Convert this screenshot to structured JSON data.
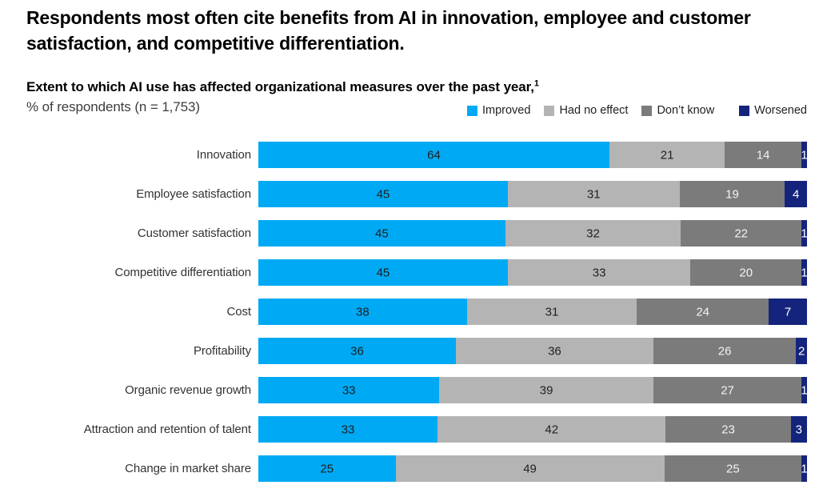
{
  "title": "Respondents most often cite benefits from AI in innovation, employee and customer satisfaction, and competitive differentiation.",
  "subtitle": {
    "text": "Extent to which AI use has affected organizational measures over the past year,",
    "footnote_marker": "1",
    "note": "% of respondents (n = 1,753)"
  },
  "legend": [
    {
      "label": "Improved",
      "color": "#00A9F4"
    },
    {
      "label": "Had no effect",
      "color": "#B4B4B4"
    },
    {
      "label": "Don’t know",
      "color": "#7B7B7B"
    },
    {
      "label": "Worsened",
      "color": "#14247D"
    }
  ],
  "chart_data": {
    "type": "bar",
    "orientation": "horizontal",
    "stacked": true,
    "value_unit": "%",
    "xlim": [
      0,
      100
    ],
    "grid": false,
    "legend_position": "top-right",
    "categories": [
      "Innovation",
      "Employee satisfaction",
      "Customer satisfaction",
      "Competitive differentiation",
      "Cost",
      "Profitability",
      "Organic revenue growth",
      "Attraction and retention of talent",
      "Change in market share"
    ],
    "series": [
      {
        "name": "Improved",
        "color": "#00A9F4",
        "label_color": "#1f1f1f",
        "values": [
          64,
          45,
          45,
          45,
          38,
          36,
          33,
          33,
          25
        ]
      },
      {
        "name": "Had no effect",
        "color": "#B4B4B4",
        "label_color": "#1f1f1f",
        "values": [
          21,
          31,
          32,
          33,
          31,
          36,
          39,
          42,
          49
        ]
      },
      {
        "name": "Don’t know",
        "color": "#7B7B7B",
        "label_color": "#f2f2f2",
        "values": [
          14,
          19,
          22,
          20,
          24,
          26,
          27,
          23,
          25
        ]
      },
      {
        "name": "Worsened",
        "color": "#14247D",
        "label_color": "#ffffff",
        "values": [
          1,
          4,
          1,
          1,
          7,
          2,
          1,
          3,
          1
        ]
      }
    ]
  }
}
